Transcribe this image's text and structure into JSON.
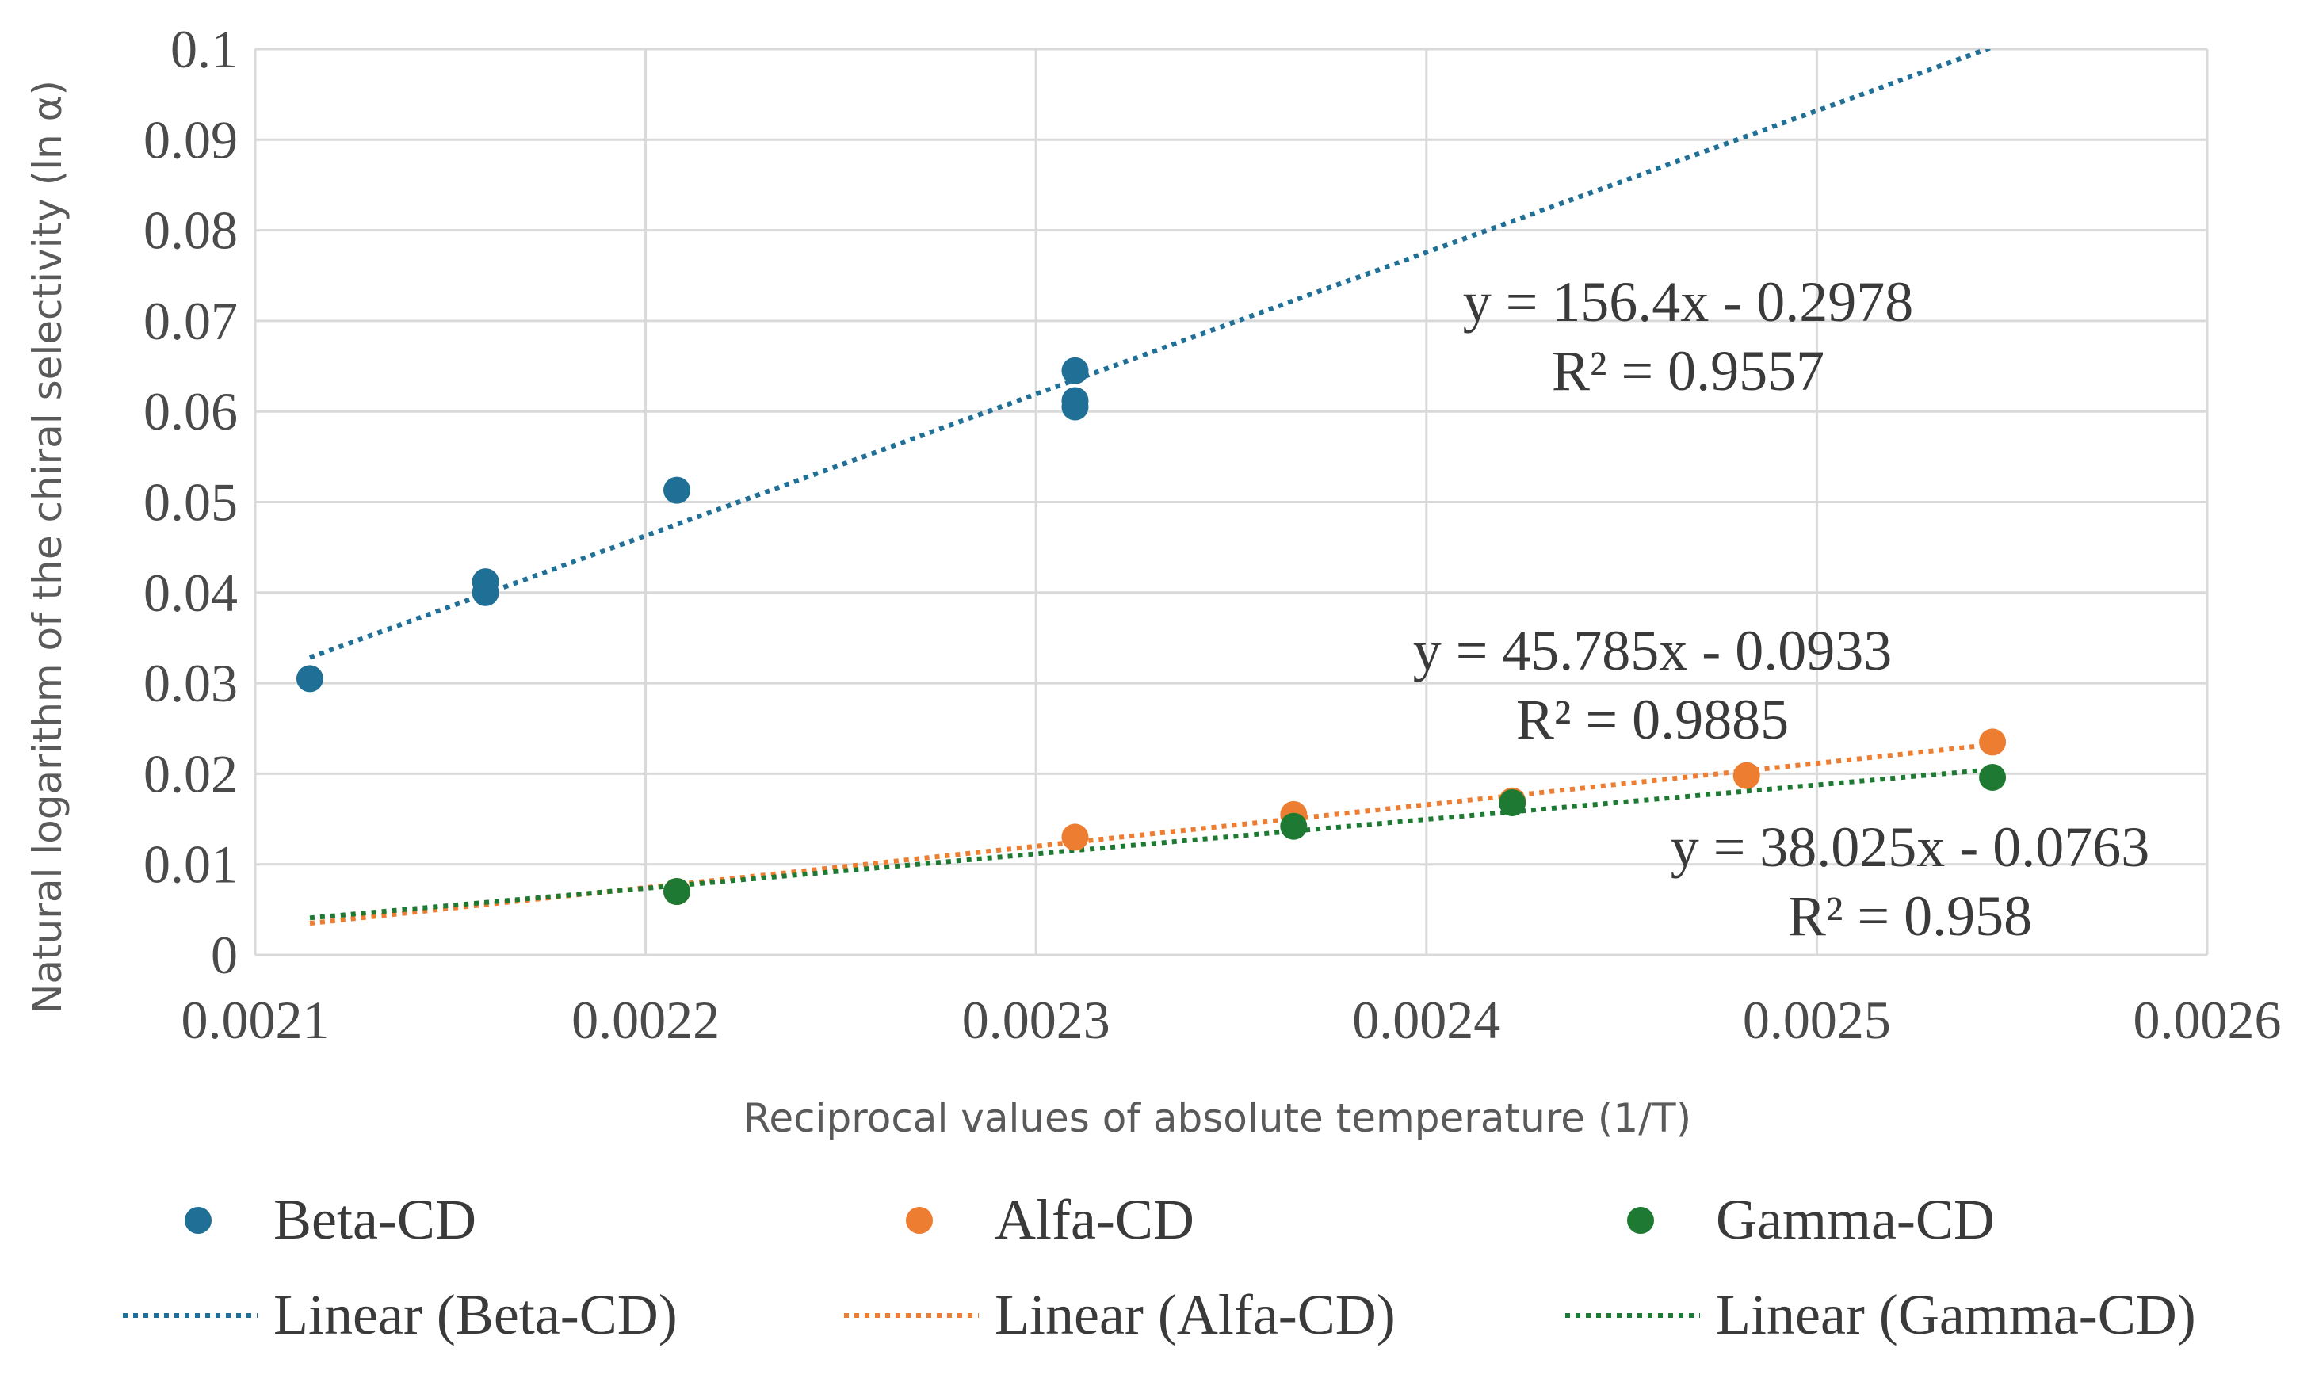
{
  "chart_data": {
    "type": "scatter",
    "xlabel": "Reciprocal values of absolute temperature (1/T)",
    "ylabel": "Natural logarithm of the chiral selectivity (ln α)",
    "xlim": [
      0.0021,
      0.0026
    ],
    "ylim": [
      0,
      0.1
    ],
    "x_ticks": [
      0.0021,
      0.0022,
      0.0023,
      0.0024,
      0.0025,
      0.0026
    ],
    "x_tick_labels": [
      "0.0021",
      "0.0022",
      "0.0023",
      "0.0024",
      "0.0025",
      "0.0026"
    ],
    "y_ticks": [
      0,
      0.01,
      0.02,
      0.03,
      0.04,
      0.05,
      0.06,
      0.07,
      0.08,
      0.09,
      0.1
    ],
    "y_tick_labels": [
      "0",
      "0.01",
      "0.02",
      "0.03",
      "0.04",
      "0.05",
      "0.06",
      "0.07",
      "0.08",
      "0.09",
      "0.1"
    ],
    "grid": true,
    "legend_position": "bottom",
    "series": [
      {
        "name": "Beta-CD",
        "color": "#1f6f97",
        "x": [
          0.002114,
          0.002159,
          0.002159,
          0.002208,
          0.00231,
          0.00231,
          0.00231
        ],
        "y": [
          0.0305,
          0.0412,
          0.04,
          0.0513,
          0.0645,
          0.0612,
          0.0605
        ],
        "trendline": {
          "name": "Linear (Beta-CD)",
          "slope": 156.4,
          "intercept": -0.2978,
          "x_range": [
            0.002114,
            0.002545
          ],
          "equation": "y = 156.4x - 0.2978",
          "r2": "R² = 0.9557"
        }
      },
      {
        "name": "Alfa-CD",
        "color": "#ed7d31",
        "x": [
          0.002208,
          0.00231,
          0.002366,
          0.002422,
          0.002482,
          0.002545
        ],
        "y": [
          0.007,
          0.013,
          0.0155,
          0.017,
          0.0198,
          0.0235
        ],
        "trendline": {
          "name": "Linear (Alfa-CD)",
          "slope": 45.785,
          "intercept": -0.0933,
          "x_range": [
            0.002114,
            0.002545
          ],
          "equation": "y = 45.785x - 0.0933",
          "r2": "R² = 0.9885"
        }
      },
      {
        "name": "Gamma-CD",
        "color": "#1e7a32",
        "x": [
          0.002208,
          0.002366,
          0.002422,
          0.002545
        ],
        "y": [
          0.007,
          0.0142,
          0.0168,
          0.0196
        ],
        "trendline": {
          "name": "Linear (Gamma-CD)",
          "slope": 38.025,
          "intercept": -0.0763,
          "x_range": [
            0.002114,
            0.002545
          ],
          "equation": "y = 38.025x - 0.0763",
          "r2": "R² = 0.958"
        }
      }
    ]
  }
}
